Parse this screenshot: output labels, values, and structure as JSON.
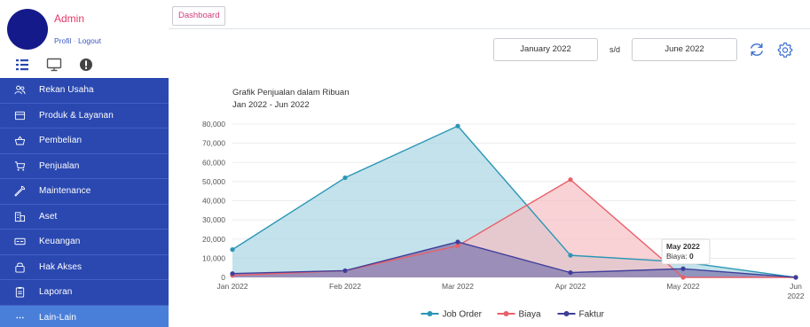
{
  "sidebar": {
    "admin_name": "Admin",
    "profile_link": "Profil",
    "link_separator": "·",
    "logout_link": "Logout",
    "quick_icons": [
      "list-icon",
      "monitor-icon",
      "alert-icon"
    ],
    "items": [
      {
        "label": "Rekan Usaha",
        "icon": "users-icon"
      },
      {
        "label": "Produk & Layanan",
        "icon": "box-icon"
      },
      {
        "label": "Pembelian",
        "icon": "basket-icon"
      },
      {
        "label": "Penjualan",
        "icon": "cart-icon"
      },
      {
        "label": "Maintenance",
        "icon": "wrench-icon"
      },
      {
        "label": "Aset",
        "icon": "building-icon"
      },
      {
        "label": "Keuangan",
        "icon": "money-icon"
      },
      {
        "label": "Hak Akses",
        "icon": "lock-icon"
      },
      {
        "label": "Laporan",
        "icon": "clipboard-icon"
      },
      {
        "label": "Lain-Lain",
        "icon": "dots-icon",
        "active": true
      }
    ],
    "colors": {
      "item_bg": "#2a48b0",
      "active_bg": "#4a7fd9",
      "avatar": "#151a8a",
      "admin_text": "#e53966"
    }
  },
  "header": {
    "tab_label": "Dashboard"
  },
  "filters": {
    "date_from": "January 2022",
    "separator": "s/d",
    "date_to": "June 2022",
    "refresh_icon": "refresh-icon",
    "settings_icon": "gear-icon"
  },
  "chart_data": {
    "type": "area",
    "title": "Grafik Penjualan dalam Ribuan",
    "subtitle": "Jan 2022 - Jun 2022",
    "categories": [
      "Jan 2022",
      "Feb 2022",
      "Mar 2022",
      "Apr 2022",
      "May 2022",
      "Jun 2022"
    ],
    "category_labels_visible": [
      "Jan 2022",
      "Feb 2022",
      "Mar 2022",
      "Apr 2022",
      "May 2022",
      "Jun",
      "2022"
    ],
    "ylim": [
      0,
      80000
    ],
    "yticks": [
      "0",
      "10,000",
      "20,000",
      "30,000",
      "40,000",
      "50,000",
      "60,000",
      "70,000",
      "80,000"
    ],
    "grid": true,
    "legend_position": "bottom",
    "series": [
      {
        "name": "Job Order",
        "color": "#2b96b5",
        "fill": "#a9d6e2",
        "values": [
          14500,
          52000,
          79000,
          11500,
          8000,
          0
        ]
      },
      {
        "name": "Biaya",
        "color": "#e8606a",
        "fill": "#f5bfc3",
        "values": [
          1000,
          3500,
          16500,
          51000,
          0,
          0
        ]
      },
      {
        "name": "Faktur",
        "color": "#3f3f9a",
        "fill": "#7b75ae",
        "values": [
          2000,
          3500,
          18500,
          2500,
          4500,
          0
        ]
      }
    ],
    "tooltip": {
      "title": "May 2022",
      "series": "Biaya",
      "label": "Biaya: ",
      "value": "0"
    }
  }
}
